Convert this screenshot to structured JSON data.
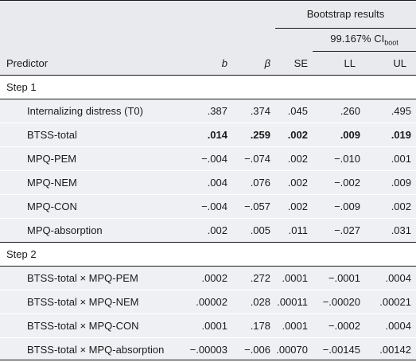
{
  "header": {
    "bootstrap_title": "Bootstrap results",
    "ci_label": "99.167% CI",
    "ci_sub": "boot",
    "columns": [
      "Predictor",
      "b",
      "β",
      "SE",
      "LL",
      "UL"
    ]
  },
  "step1": {
    "label": "Step 1",
    "rows": [
      {
        "predictor": "Internalizing distress (T0)",
        "b": ".387",
        "beta": ".374",
        "se": ".045",
        "ll": ".260",
        "ul": ".495"
      },
      {
        "predictor": "BTSS-total",
        "b": ".014",
        "beta": ".259",
        "se": ".002",
        "ll": ".009",
        "ul": ".019"
      },
      {
        "predictor": "MPQ-PEM",
        "b": "−.004",
        "beta": "−.074",
        "se": ".002",
        "ll": "−.010",
        "ul": ".001"
      },
      {
        "predictor": "MPQ-NEM",
        "b": ".004",
        "beta": ".076",
        "se": ".002",
        "ll": "−.002",
        "ul": ".009"
      },
      {
        "predictor": "MPQ-CON",
        "b": "−.004",
        "beta": "−.057",
        "se": ".002",
        "ll": "−.009",
        "ul": ".002"
      },
      {
        "predictor": "MPQ-absorption",
        "b": ".002",
        "beta": ".005",
        "se": ".011",
        "ll": "−.027",
        "ul": ".031"
      }
    ]
  },
  "step2": {
    "label": "Step 2",
    "rows": [
      {
        "predictor": "BTSS-total × MPQ-PEM",
        "b": ".0002",
        "beta": ".272",
        "se": ".0001",
        "ll": "−.0001",
        "ul": ".0004"
      },
      {
        "predictor": "BTSS-total × MPQ-NEM",
        "b": ".00002",
        "beta": ".028",
        "se": ".00011",
        "ll": "−.00020",
        "ul": ".00021"
      },
      {
        "predictor": "BTSS-total × MPQ-CON",
        "b": ".0001",
        "beta": ".178",
        "se": ".0001",
        "ll": "−.0002",
        "ul": ".0004"
      },
      {
        "predictor": "BTSS-total × MPQ-absorption",
        "b": "−.00003",
        "beta": "−.006",
        "se": ".00070",
        "ll": "−.00145",
        "ul": ".00142"
      }
    ]
  }
}
